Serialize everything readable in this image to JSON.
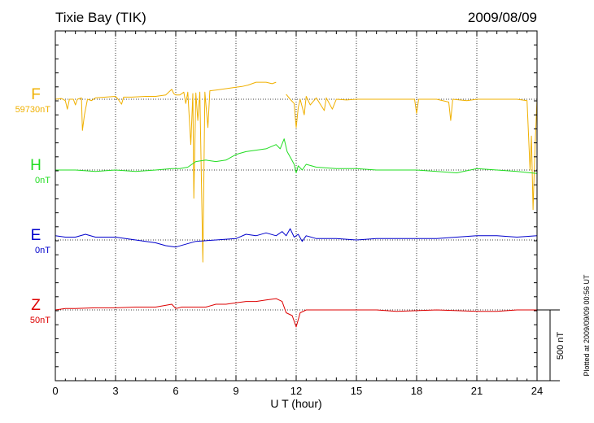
{
  "chart_data": {
    "type": "line",
    "title": "Tixie Bay (TIK)",
    "date": "2009/08/09",
    "xlabel": "U T (hour)",
    "xlim": [
      0,
      24
    ],
    "xticks": [
      "0",
      "3",
      "6",
      "9",
      "12",
      "15",
      "18",
      "21",
      "24"
    ],
    "grid": true,
    "scale_bar": "500 nT",
    "scale_bar_nT": 500,
    "plotted_note": "Plotted at 2009/09/09 00:56 UT",
    "series": [
      {
        "name": "F",
        "baseline": "59730nT",
        "color": "#f0b000",
        "points": [
          [
            0.0,
            0
          ],
          [
            0.3,
            5
          ],
          [
            0.5,
            -10
          ],
          [
            0.6,
            -70
          ],
          [
            0.7,
            0
          ],
          [
            0.9,
            0
          ],
          [
            1.0,
            -40
          ],
          [
            1.1,
            0
          ],
          [
            1.3,
            10
          ],
          [
            1.35,
            -220
          ],
          [
            1.45,
            -110
          ],
          [
            1.6,
            0
          ],
          [
            1.8,
            -10
          ],
          [
            2.0,
            10
          ],
          [
            2.5,
            15
          ],
          [
            3.0,
            20
          ],
          [
            3.1,
            5
          ],
          [
            3.3,
            -35
          ],
          [
            3.4,
            15
          ],
          [
            3.8,
            15
          ],
          [
            4.5,
            20
          ],
          [
            5.0,
            20
          ],
          [
            5.5,
            30
          ],
          [
            5.8,
            70
          ],
          [
            5.9,
            40
          ],
          [
            6.0,
            30
          ],
          [
            6.2,
            30
          ],
          [
            6.4,
            50
          ],
          [
            6.5,
            -30
          ],
          [
            6.6,
            50
          ],
          [
            6.75,
            -320
          ],
          [
            6.85,
            40
          ],
          [
            6.9,
            -700
          ],
          [
            7.0,
            45
          ],
          [
            7.1,
            -150
          ],
          [
            7.2,
            50
          ],
          [
            7.35,
            -1150
          ],
          [
            7.45,
            50
          ],
          [
            7.6,
            -200
          ],
          [
            7.7,
            60
          ],
          [
            8.0,
            65
          ],
          [
            8.5,
            75
          ],
          [
            9.0,
            85
          ],
          [
            9.3,
            90
          ],
          [
            9.6,
            100
          ],
          [
            10.0,
            120
          ],
          [
            10.5,
            120
          ],
          [
            10.8,
            110
          ],
          [
            11.0,
            120
          ],
          [
            11.15,
            null
          ],
          [
            11.5,
            35
          ],
          [
            11.7,
            0
          ],
          [
            11.9,
            -30
          ],
          [
            12.0,
            -200
          ],
          [
            12.1,
            -60
          ],
          [
            12.2,
            0
          ],
          [
            12.4,
            -110
          ],
          [
            12.5,
            20
          ],
          [
            12.7,
            -40
          ],
          [
            13.0,
            10
          ],
          [
            13.4,
            -80
          ],
          [
            13.5,
            10
          ],
          [
            13.8,
            -70
          ],
          [
            14.0,
            0
          ],
          [
            14.5,
            -5
          ],
          [
            15.0,
            0
          ],
          [
            16.0,
            0
          ],
          [
            17.0,
            0
          ],
          [
            17.9,
            0
          ],
          [
            18.0,
            -100
          ],
          [
            18.1,
            0
          ],
          [
            19.0,
            0
          ],
          [
            19.6,
            -20
          ],
          [
            19.7,
            -150
          ],
          [
            19.8,
            0
          ],
          [
            20.5,
            -10
          ],
          [
            21.0,
            0
          ],
          [
            22.0,
            0
          ],
          [
            23.0,
            0
          ],
          [
            23.5,
            -10
          ],
          [
            23.65,
            -500
          ],
          [
            23.72,
            -260
          ],
          [
            23.8,
            -780
          ],
          [
            23.9,
            -340
          ],
          [
            24.0,
            0
          ]
        ]
      },
      {
        "name": "H",
        "baseline": "0nT",
        "color": "#22dd22",
        "points": [
          [
            0.0,
            0
          ],
          [
            1.0,
            0
          ],
          [
            2.0,
            -10
          ],
          [
            3.0,
            0
          ],
          [
            4.0,
            -10
          ],
          [
            5.0,
            0
          ],
          [
            5.8,
            10
          ],
          [
            6.2,
            10
          ],
          [
            6.6,
            20
          ],
          [
            7.0,
            60
          ],
          [
            7.5,
            70
          ],
          [
            8.0,
            60
          ],
          [
            8.5,
            70
          ],
          [
            9.0,
            110
          ],
          [
            9.5,
            130
          ],
          [
            10.0,
            140
          ],
          [
            10.5,
            150
          ],
          [
            11.0,
            180
          ],
          [
            11.2,
            150
          ],
          [
            11.4,
            220
          ],
          [
            11.55,
            130
          ],
          [
            11.75,
            80
          ],
          [
            11.9,
            40
          ],
          [
            12.0,
            -20
          ],
          [
            12.1,
            30
          ],
          [
            12.3,
            0
          ],
          [
            12.5,
            40
          ],
          [
            13.0,
            20
          ],
          [
            14.0,
            10
          ],
          [
            15.0,
            10
          ],
          [
            16.0,
            0
          ],
          [
            17.0,
            0
          ],
          [
            18.0,
            0
          ],
          [
            19.0,
            -10
          ],
          [
            20.0,
            -20
          ],
          [
            21.0,
            10
          ],
          [
            22.0,
            0
          ],
          [
            23.0,
            -10
          ],
          [
            24.0,
            -25
          ]
        ]
      },
      {
        "name": "E",
        "baseline": "0nT",
        "color": "#0000cc",
        "points": [
          [
            0.0,
            30
          ],
          [
            0.5,
            20
          ],
          [
            1.0,
            20
          ],
          [
            1.5,
            40
          ],
          [
            2.0,
            20
          ],
          [
            3.0,
            20
          ],
          [
            4.0,
            0
          ],
          [
            5.0,
            -20
          ],
          [
            5.5,
            -40
          ],
          [
            6.0,
            -50
          ],
          [
            6.5,
            -30
          ],
          [
            7.0,
            -10
          ],
          [
            8.0,
            0
          ],
          [
            9.0,
            10
          ],
          [
            9.5,
            40
          ],
          [
            10.0,
            30
          ],
          [
            10.5,
            50
          ],
          [
            11.0,
            30
          ],
          [
            11.3,
            60
          ],
          [
            11.5,
            30
          ],
          [
            11.7,
            80
          ],
          [
            11.9,
            20
          ],
          [
            12.1,
            40
          ],
          [
            12.3,
            -10
          ],
          [
            12.5,
            30
          ],
          [
            13.0,
            10
          ],
          [
            14.0,
            10
          ],
          [
            15.0,
            0
          ],
          [
            16.0,
            10
          ],
          [
            17.0,
            10
          ],
          [
            18.0,
            10
          ],
          [
            19.0,
            10
          ],
          [
            20.0,
            20
          ],
          [
            21.0,
            30
          ],
          [
            22.0,
            30
          ],
          [
            23.0,
            20
          ],
          [
            24.0,
            30
          ]
        ]
      },
      {
        "name": "Z",
        "baseline": "50nT",
        "color": "#dd0000",
        "points": [
          [
            0.0,
            0
          ],
          [
            0.5,
            10
          ],
          [
            1.0,
            10
          ],
          [
            2.0,
            15
          ],
          [
            3.0,
            15
          ],
          [
            4.0,
            20
          ],
          [
            5.0,
            20
          ],
          [
            5.8,
            40
          ],
          [
            6.0,
            10
          ],
          [
            6.3,
            20
          ],
          [
            7.0,
            20
          ],
          [
            7.5,
            20
          ],
          [
            8.0,
            40
          ],
          [
            8.5,
            40
          ],
          [
            9.0,
            50
          ],
          [
            9.5,
            60
          ],
          [
            10.0,
            60
          ],
          [
            10.5,
            70
          ],
          [
            11.0,
            80
          ],
          [
            11.3,
            60
          ],
          [
            11.5,
            -20
          ],
          [
            11.8,
            -40
          ],
          [
            12.0,
            -120
          ],
          [
            12.2,
            -20
          ],
          [
            12.5,
            0
          ],
          [
            13.0,
            0
          ],
          [
            14.0,
            0
          ],
          [
            15.0,
            0
          ],
          [
            16.0,
            0
          ],
          [
            17.0,
            -10
          ],
          [
            18.0,
            -5
          ],
          [
            19.0,
            0
          ],
          [
            20.0,
            -5
          ],
          [
            21.0,
            -10
          ],
          [
            22.0,
            -10
          ],
          [
            23.0,
            0
          ],
          [
            24.0,
            0
          ]
        ]
      }
    ]
  }
}
